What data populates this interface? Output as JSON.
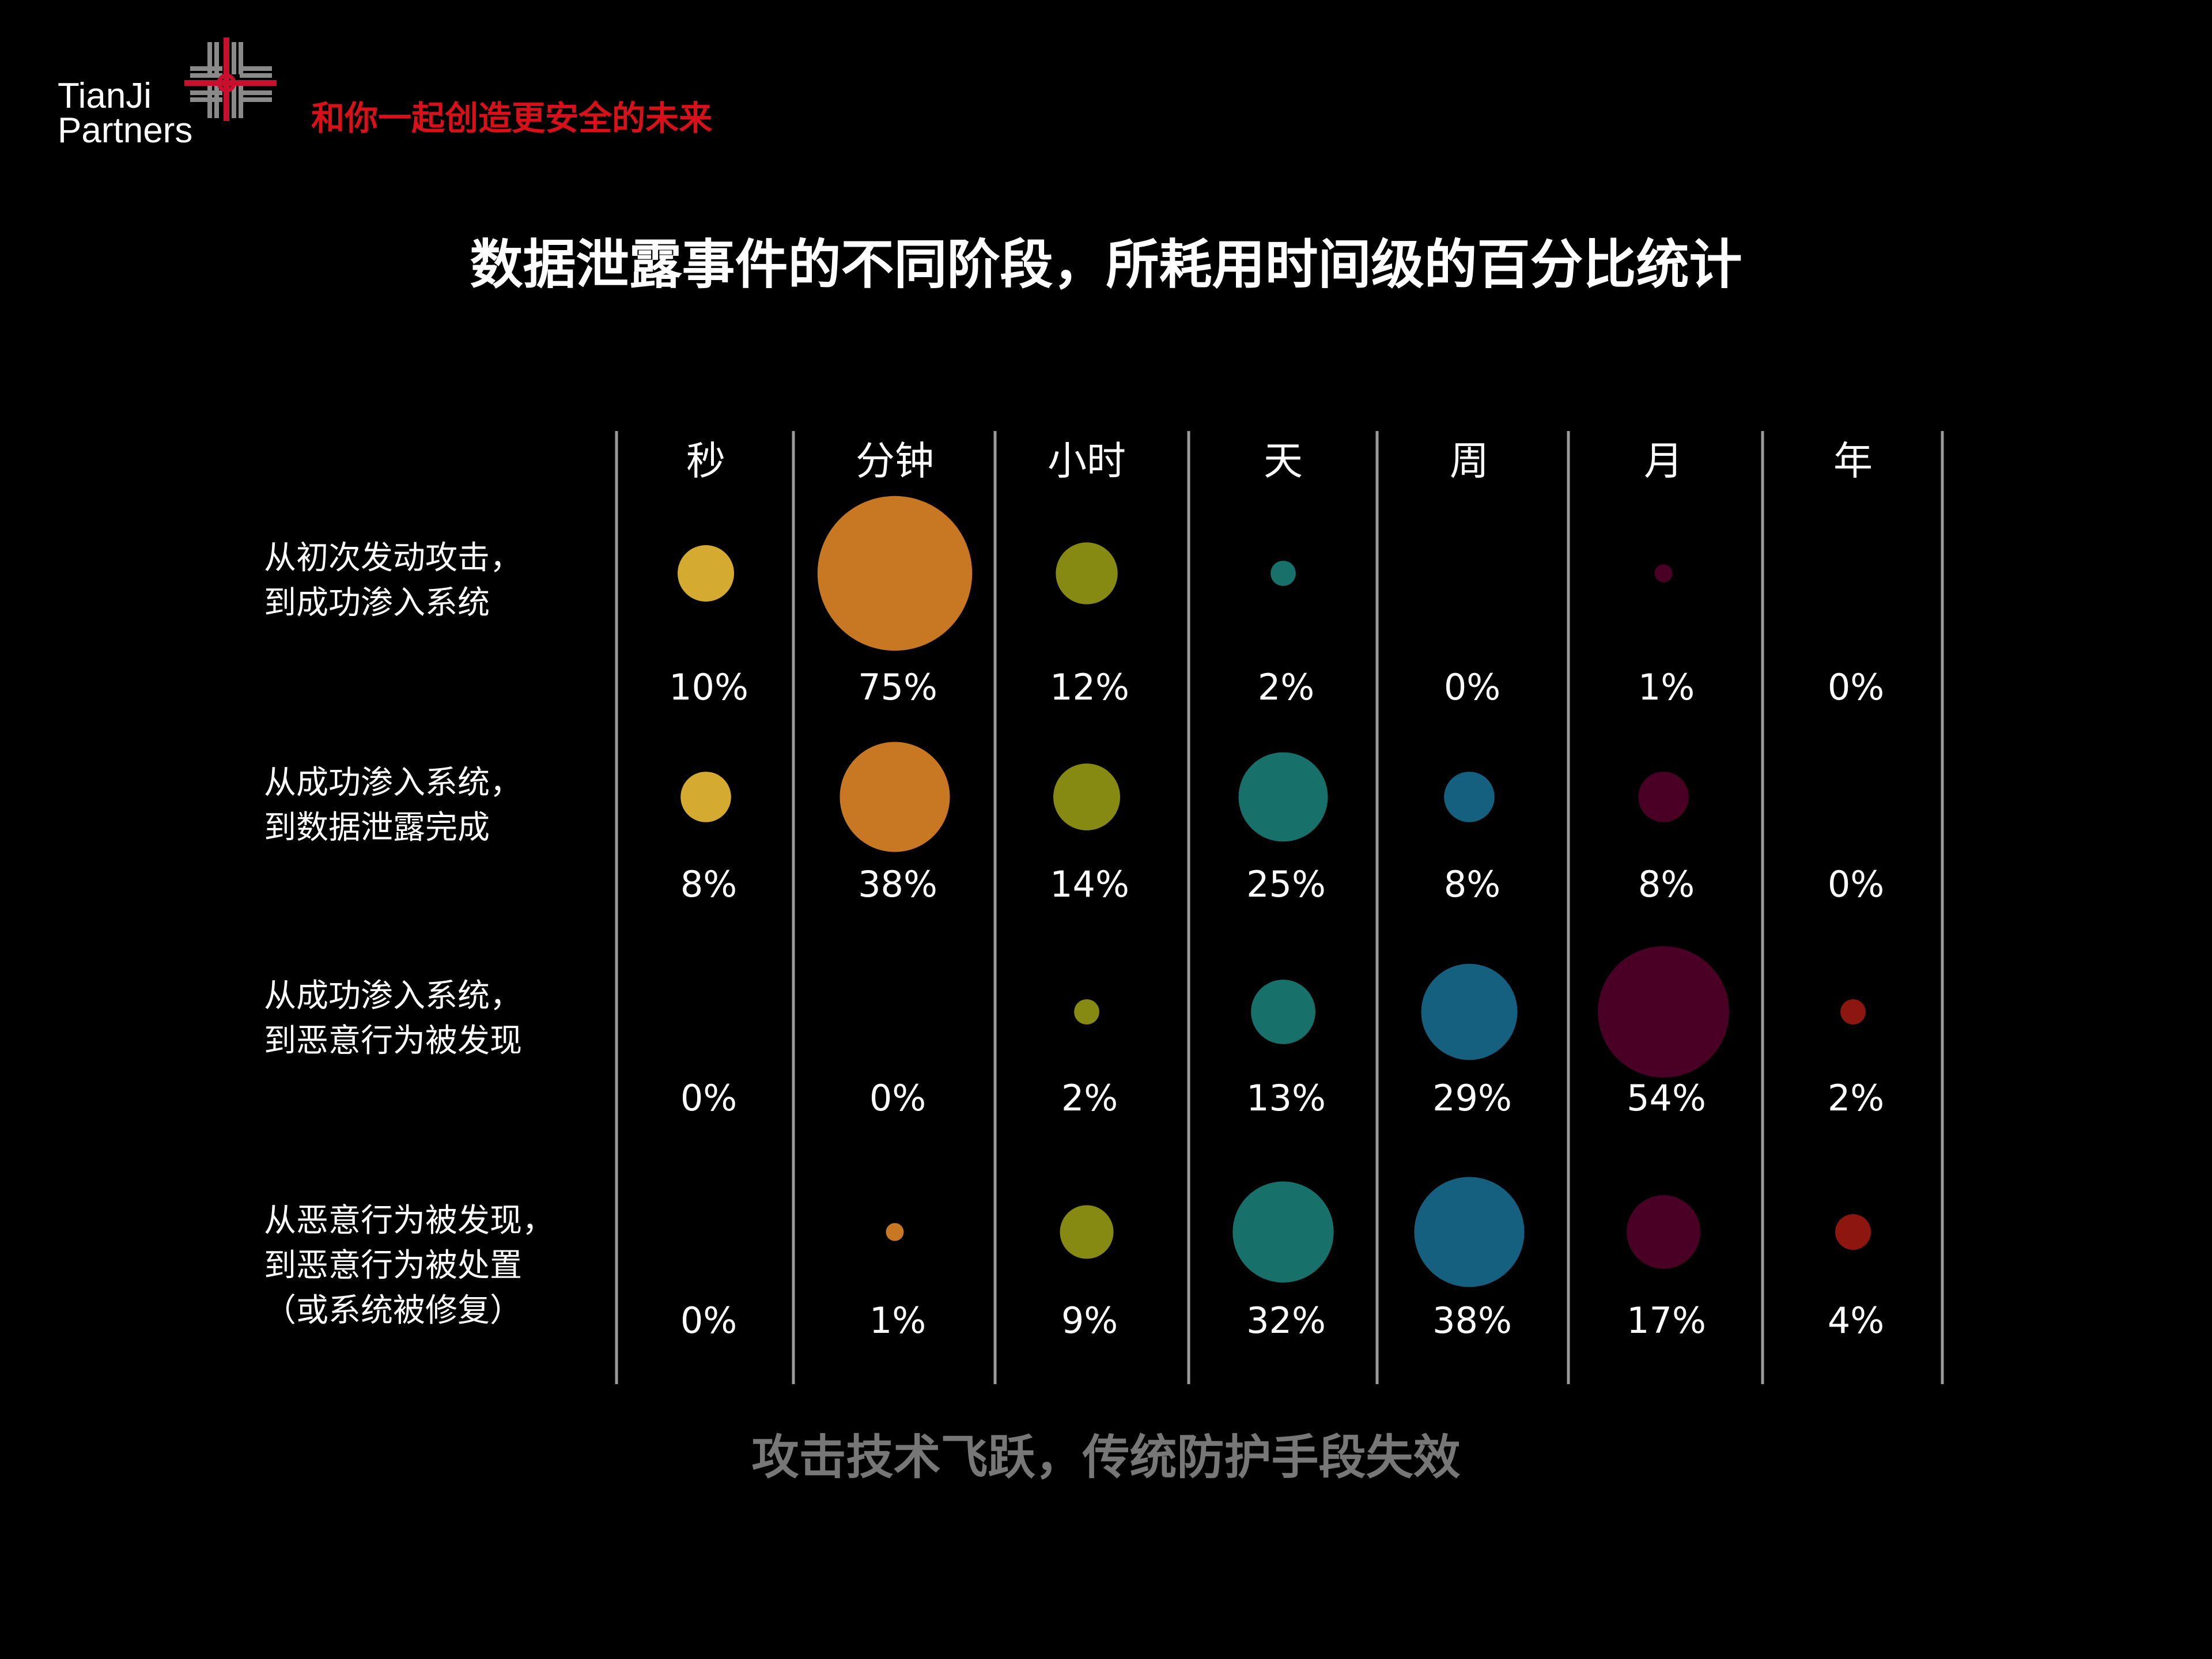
{
  "logo": {
    "line1": "TianJi",
    "line2": "Partners",
    "mark_colors": [
      "#8a8a8a",
      "#c8102e"
    ]
  },
  "slogan": "和你一起创造更安全的未来",
  "title": "数据泄露事件的不同阶段，所耗用时间级的百分比统计",
  "footer": "攻击技术飞跃，传统防护手段失效",
  "chart_data": {
    "type": "bubble",
    "columns": [
      "秒",
      "分钟",
      "小时",
      "天",
      "周",
      "月",
      "年"
    ],
    "column_colors": [
      "#d4aa30",
      "#c87822",
      "#868a12",
      "#18706a",
      "#15607e",
      "#4a0024",
      "#8e1610"
    ],
    "rows": [
      {
        "label": [
          "从初次发动攻击，",
          "到成功渗入系统"
        ],
        "values": [
          10,
          75,
          12,
          2,
          0,
          1,
          0
        ],
        "value_labels": [
          "10%",
          "75%",
          "12%",
          "2%",
          "0%",
          "1%",
          "0%"
        ]
      },
      {
        "label": [
          "从成功渗入系统，",
          "到数据泄露完成"
        ],
        "values": [
          8,
          38,
          14,
          25,
          8,
          8,
          0
        ],
        "value_labels": [
          "8%",
          "38%",
          "14%",
          "25%",
          "8%",
          "8%",
          "0%"
        ]
      },
      {
        "label": [
          "从成功渗入系统，",
          "到恶意行为被发现"
        ],
        "values": [
          0,
          0,
          2,
          13,
          29,
          54,
          2
        ],
        "value_labels": [
          "0%",
          "0%",
          "2%",
          "13%",
          "29%",
          "54%",
          "2%"
        ]
      },
      {
        "label": [
          "从恶意行为被发现，",
          "到恶意行为被处置",
          "（或系统被修复）"
        ],
        "values": [
          0,
          1,
          9,
          32,
          38,
          17,
          4
        ],
        "value_labels": [
          "0%",
          "1%",
          "9%",
          "32%",
          "38%",
          "17%",
          "4%"
        ]
      }
    ],
    "unit": "%"
  }
}
